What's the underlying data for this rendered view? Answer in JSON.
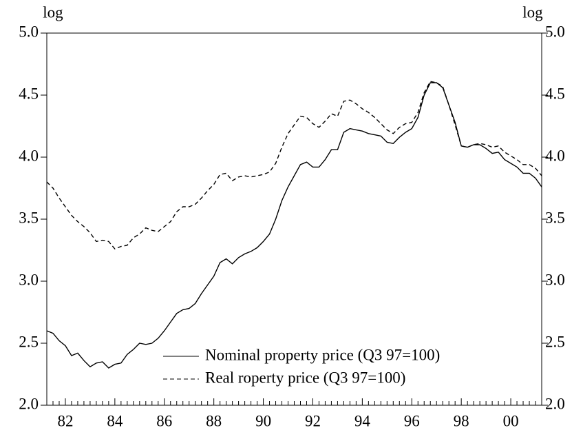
{
  "chart_data": {
    "type": "line",
    "y_label": "log",
    "y2_label": "log",
    "categories": [
      null,
      null,
      null,
      "82",
      null,
      null,
      null,
      null,
      null,
      null,
      null,
      "84",
      null,
      null,
      null,
      null,
      null,
      null,
      null,
      "86",
      null,
      null,
      null,
      null,
      null,
      null,
      null,
      "88",
      null,
      null,
      null,
      null,
      null,
      null,
      null,
      "90",
      null,
      null,
      null,
      null,
      null,
      null,
      null,
      "92",
      null,
      null,
      null,
      null,
      null,
      null,
      null,
      "94",
      null,
      null,
      null,
      null,
      null,
      null,
      null,
      "96",
      null,
      null,
      null,
      null,
      null,
      null,
      null,
      "98",
      null,
      null,
      null,
      null,
      null,
      null,
      null,
      "00",
      null,
      null,
      null,
      null,
      null
    ],
    "series": [
      {
        "name": "Nominal property price (Q3 97=100)",
        "color": "#000000",
        "line_style": "solid",
        "values": [
          2.6,
          2.58,
          2.52,
          2.48,
          2.4,
          2.42,
          2.36,
          2.31,
          2.34,
          2.35,
          2.3,
          2.33,
          2.34,
          2.41,
          2.45,
          2.5,
          2.49,
          2.5,
          2.54,
          2.6,
          2.67,
          2.74,
          2.77,
          2.78,
          2.82,
          2.9,
          2.97,
          3.04,
          3.15,
          3.18,
          3.14,
          3.19,
          3.22,
          3.24,
          3.27,
          3.32,
          3.38,
          3.5,
          3.65,
          3.76,
          3.85,
          3.94,
          3.96,
          3.92,
          3.92,
          3.98,
          4.06,
          4.06,
          4.2,
          4.23,
          4.22,
          4.21,
          4.19,
          4.18,
          4.17,
          4.12,
          4.11,
          4.16,
          4.2,
          4.23,
          4.32,
          4.5,
          4.6,
          4.6,
          4.56,
          4.42,
          4.28,
          4.09,
          4.08,
          4.1,
          4.1,
          4.07,
          4.03,
          4.04,
          3.98,
          3.95,
          3.92,
          3.87,
          3.87,
          3.83,
          3.76
        ]
      },
      {
        "name": "Real roperty price (Q3 97=100)",
        "color": "#000000",
        "line_style": "dashed",
        "values": [
          3.8,
          3.75,
          3.67,
          3.6,
          3.53,
          3.48,
          3.44,
          3.39,
          3.32,
          3.33,
          3.32,
          3.26,
          3.28,
          3.29,
          3.35,
          3.38,
          3.43,
          3.41,
          3.4,
          3.44,
          3.48,
          3.56,
          3.6,
          3.6,
          3.62,
          3.67,
          3.73,
          3.78,
          3.86,
          3.87,
          3.81,
          3.84,
          3.85,
          3.84,
          3.85,
          3.86,
          3.88,
          3.95,
          4.08,
          4.19,
          4.26,
          4.33,
          4.32,
          4.27,
          4.24,
          4.29,
          4.35,
          4.33,
          4.45,
          4.46,
          4.43,
          4.39,
          4.36,
          4.32,
          4.27,
          4.22,
          4.19,
          4.24,
          4.27,
          4.28,
          4.36,
          4.52,
          4.61,
          4.6,
          4.57,
          4.42,
          4.26,
          4.09,
          4.08,
          4.1,
          4.11,
          4.1,
          4.08,
          4.09,
          4.04,
          4.01,
          3.98,
          3.94,
          3.94,
          3.91,
          3.85
        ]
      }
    ],
    "ylim": [
      2.0,
      5.0
    ],
    "yticks": [
      {
        "value": 2,
        "label": "2.0"
      },
      {
        "value": 2.5,
        "label": "2.5"
      },
      {
        "value": 3,
        "label": "3.0"
      },
      {
        "value": 3.5,
        "label": "3.5"
      },
      {
        "value": 4,
        "label": "4.0"
      },
      {
        "value": 4.5,
        "label": "4.5"
      },
      {
        "value": 5,
        "label": "5.0"
      }
    ],
    "y2lim": [
      2.0,
      5.0
    ],
    "y2ticks": [
      {
        "value": 2,
        "label": "2.0"
      },
      {
        "value": 2.5,
        "label": "2.5"
      },
      {
        "value": 3,
        "label": "3.0"
      },
      {
        "value": 3.5,
        "label": "3.5"
      },
      {
        "value": 4,
        "label": "4.0"
      },
      {
        "value": 4.5,
        "label": "4.5"
      },
      {
        "value": 5,
        "label": "5.0"
      }
    ],
    "grid": false
  }
}
